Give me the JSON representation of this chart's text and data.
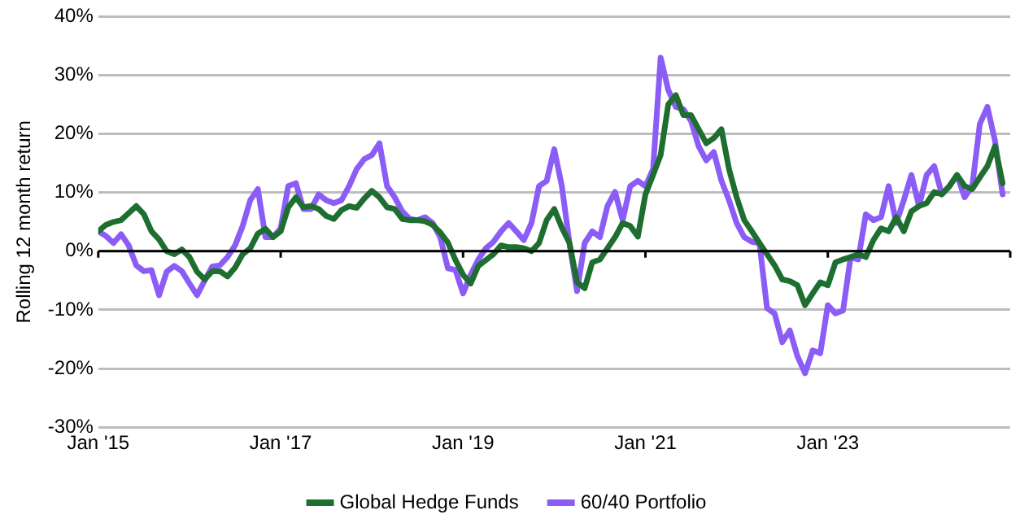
{
  "chart_data": {
    "type": "line",
    "ylabel": "Rolling 12 month return",
    "x": [
      "2015-01",
      "2015-02",
      "2015-03",
      "2015-04",
      "2015-05",
      "2015-06",
      "2015-07",
      "2015-08",
      "2015-09",
      "2015-10",
      "2015-11",
      "2015-12",
      "2016-01",
      "2016-02",
      "2016-03",
      "2016-04",
      "2016-05",
      "2016-06",
      "2016-07",
      "2016-08",
      "2016-09",
      "2016-10",
      "2016-11",
      "2016-12",
      "2017-01",
      "2017-02",
      "2017-03",
      "2017-04",
      "2017-05",
      "2017-06",
      "2017-07",
      "2017-08",
      "2017-09",
      "2017-10",
      "2017-11",
      "2017-12",
      "2018-01",
      "2018-02",
      "2018-03",
      "2018-04",
      "2018-05",
      "2018-06",
      "2018-07",
      "2018-08",
      "2018-09",
      "2018-10",
      "2018-11",
      "2018-12",
      "2019-01",
      "2019-02",
      "2019-03",
      "2019-04",
      "2019-05",
      "2019-06",
      "2019-07",
      "2019-08",
      "2019-09",
      "2019-10",
      "2019-11",
      "2019-12",
      "2020-01",
      "2020-02",
      "2020-03",
      "2020-04",
      "2020-05",
      "2020-06",
      "2020-07",
      "2020-08",
      "2020-09",
      "2020-10",
      "2020-11",
      "2020-12",
      "2021-01",
      "2021-02",
      "2021-03",
      "2021-04",
      "2021-05",
      "2021-06",
      "2021-07",
      "2021-08",
      "2021-09",
      "2021-10",
      "2021-11",
      "2021-12",
      "2022-01",
      "2022-02",
      "2022-03",
      "2022-04",
      "2022-05",
      "2022-06",
      "2022-07",
      "2022-08",
      "2022-09",
      "2022-10",
      "2022-11",
      "2022-12",
      "2023-01",
      "2023-02",
      "2023-03",
      "2023-04",
      "2023-05",
      "2023-06",
      "2023-07",
      "2023-08",
      "2023-09",
      "2023-10",
      "2023-11",
      "2023-12",
      "2024-01",
      "2024-02",
      "2024-03",
      "2024-04",
      "2024-05",
      "2024-06",
      "2024-07",
      "2024-08",
      "2024-09",
      "2024-10",
      "2024-11",
      "2024-12"
    ],
    "series": [
      {
        "name": "Global Hedge Funds",
        "color": "#1e6e30",
        "values": [
          3.4,
          4.5,
          5,
          5.3,
          6.5,
          7.7,
          6.3,
          3.4,
          2,
          0,
          -0.5,
          0.3,
          -1,
          -3.5,
          -4.8,
          -3.4,
          -3.4,
          -4.3,
          -2.8,
          -0.5,
          0.5,
          3,
          3.8,
          2.4,
          3.4,
          7.5,
          9.2,
          7.5,
          7.7,
          7.2,
          6,
          5.5,
          7,
          7.7,
          7.4,
          9,
          10.3,
          9.2,
          7.5,
          7.2,
          5.5,
          5.3,
          5.3,
          5.1,
          4.5,
          3.2,
          1.5,
          -1.5,
          -4,
          -5.5,
          -2.5,
          -1.5,
          -0.5,
          1,
          0.7,
          0.7,
          0.5,
          0,
          1.4,
          5.3,
          7.2,
          4,
          1.4,
          -5.3,
          -6.3,
          -1.9,
          -1.4,
          0.5,
          2.4,
          4.8,
          4.3,
          2.5,
          9.7,
          13,
          16.4,
          25,
          26.6,
          23.2,
          23.2,
          20.8,
          18.4,
          19.3,
          20.8,
          14,
          9.2,
          5.3,
          3.4,
          1.4,
          -0.5,
          -2.4,
          -4.8,
          -5.1,
          -5.8,
          -9.2,
          -7.2,
          -5.3,
          -5.8,
          -1.9,
          -1.4,
          -1,
          -0.5,
          -1,
          1.9,
          3.9,
          3.4,
          5.8,
          3.4,
          6.8,
          7.7,
          8.2,
          10.1,
          9.7,
          11.1,
          13,
          11.1,
          10.6,
          12.6,
          14.5,
          17.9,
          11.6
        ]
      },
      {
        "name": "60/40 Portfolio",
        "color": "#8b5cf6",
        "values": [
          3.4,
          2.6,
          1.4,
          2.9,
          1,
          -2.4,
          -3.4,
          -3.2,
          -7.5,
          -3.5,
          -2.5,
          -3.4,
          -5.5,
          -7.5,
          -5,
          -2.6,
          -2.4,
          -1,
          1,
          4.3,
          8.7,
          10.6,
          2.4,
          2.4,
          3.9,
          11.1,
          11.6,
          7.2,
          7.2,
          9.7,
          8.7,
          8.2,
          8.7,
          11.1,
          14,
          15.7,
          16.4,
          18.4,
          11.1,
          9.2,
          6.8,
          5.5,
          5.3,
          5.8,
          4.8,
          2.4,
          -2.9,
          -3.2,
          -7.2,
          -4,
          -1.4,
          0.5,
          1.6,
          3.4,
          4.8,
          3.4,
          1.9,
          4.8,
          11.1,
          12,
          17.4,
          11.1,
          1.4,
          -6.8,
          1.4,
          3.4,
          2.4,
          7.7,
          10.1,
          5.3,
          11.1,
          12,
          11.1,
          14,
          33,
          27.5,
          24.6,
          24.2,
          22.2,
          17.9,
          15.5,
          16.9,
          12,
          8.7,
          4.8,
          2.4,
          1.6,
          1.4,
          -9.7,
          -10.6,
          -15.5,
          -13.5,
          -17.9,
          -20.8,
          -16.9,
          -17.4,
          -9.2,
          -10.6,
          -10.1,
          -1,
          -1.4,
          6.3,
          5.3,
          5.8,
          11.1,
          4.8,
          8.7,
          13,
          7.7,
          13,
          14.5,
          9.7,
          11.1,
          13,
          9.2,
          11.1,
          21.7,
          24.6,
          18.8,
          9.7
        ]
      }
    ],
    "xlim": [
      "2015-01",
      "2025-01"
    ],
    "xticks": [
      {
        "value": "2015-01",
        "label": "Jan '15"
      },
      {
        "value": "2017-01",
        "label": "Jan '17"
      },
      {
        "value": "2019-01",
        "label": "Jan '19"
      },
      {
        "value": "2021-01",
        "label": "Jan '21"
      },
      {
        "value": "2023-01",
        "label": "Jan '23"
      },
      {
        "value": "2025-01",
        "label": null
      }
    ],
    "ylim": [
      -30,
      40
    ],
    "yticks": [
      {
        "value": -30,
        "label": "-30%"
      },
      {
        "value": -20,
        "label": "-20%"
      },
      {
        "value": -10,
        "label": "-10%"
      },
      {
        "value": 0,
        "label": "0%"
      },
      {
        "value": 10,
        "label": "10%"
      },
      {
        "value": 20,
        "label": "20%"
      },
      {
        "value": 30,
        "label": "30%"
      },
      {
        "value": 40,
        "label": "40%"
      }
    ],
    "grid": "y",
    "legend": "bottom",
    "marker": "none",
    "line_style": "solid"
  }
}
